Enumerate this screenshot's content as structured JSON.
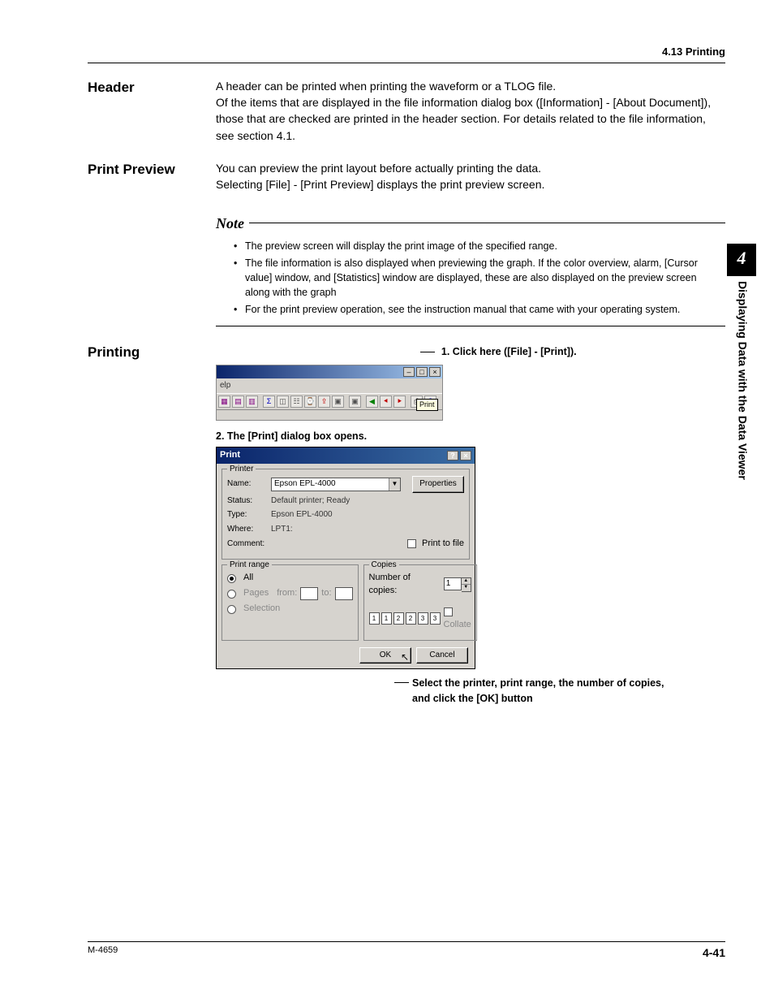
{
  "page": {
    "top_right_header": "4.13  Printing",
    "footer_left": "M-4659",
    "footer_right": "4-41",
    "chapter_number": "4",
    "side_label": "Displaying Data with the Data Viewer"
  },
  "colors": {
    "titlebar_gradient_from": "#0a246a",
    "titlebar_gradient_to": "#a6caf0",
    "win_bg": "#d6d3ce",
    "tooltip_bg": "#ffffe1"
  },
  "sections": {
    "header": {
      "title": "Header",
      "body": "A header can be printed when printing the waveform or a TLOG file.\nOf the items that are displayed in the file information dialog box ([Information] - [About Document]), those that are checked are printed in the header section.  For details related to the file information, see section 4.1."
    },
    "print_preview": {
      "title": "Print Preview",
      "body": "You can preview the print layout before actually printing the data.\nSelecting [File] - [Print Preview] displays the print preview screen."
    },
    "note": {
      "label": "Note",
      "items": [
        "The preview screen will display the print image of the specified range.",
        "The file information is also displayed when previewing the graph.  If the color overview, alarm, [Cursor value] window, and [Statistics] window are displayed, these are also displayed on the preview screen along with the graph",
        "For the print preview operation, see the instruction manual that came with your operating system."
      ]
    },
    "printing": {
      "title": "Printing",
      "step1": "1. Click here ([File] - [Print]).",
      "step2": "2. The [Print] dialog box opens.",
      "annotation": "Select the printer, print range, the number of copies, and click the [OK] button"
    }
  },
  "toolbar_window": {
    "menu_help_label": "elp",
    "tooltip_text": "Print",
    "icons": [
      "▦",
      "▤",
      "▥",
      " ",
      "Σ",
      "◫",
      "☷",
      "⌚",
      "⇪",
      "▣",
      " ",
      "▣",
      " ",
      "◀",
      "⯇",
      "⯈",
      " ",
      "⎙",
      "?"
    ]
  },
  "print_dialog": {
    "title": "Print",
    "printer": {
      "legend": "Printer",
      "name_label": "Name:",
      "name_value": "Epson EPL-4000",
      "status_label": "Status:",
      "status_value": "Default printer; Ready",
      "type_label": "Type:",
      "type_value": "Epson EPL-4000",
      "where_label": "Where:",
      "where_value": "LPT1:",
      "comment_label": "Comment:",
      "comment_value": "",
      "properties_button": "Properties",
      "print_to_file_checkbox": "Print to file"
    },
    "print_range": {
      "legend": "Print range",
      "all_label": "All",
      "pages_label": "Pages",
      "from_label": "from:",
      "to_label": "to:",
      "selection_label": "Selection"
    },
    "copies": {
      "legend": "Copies",
      "number_label": "Number of copies:",
      "number_value": "1",
      "collate_label": "Collate",
      "collate_digits": [
        "1",
        "1",
        "2",
        "2",
        "3",
        "3"
      ]
    },
    "buttons": {
      "ok": "OK",
      "cancel": "Cancel"
    }
  }
}
